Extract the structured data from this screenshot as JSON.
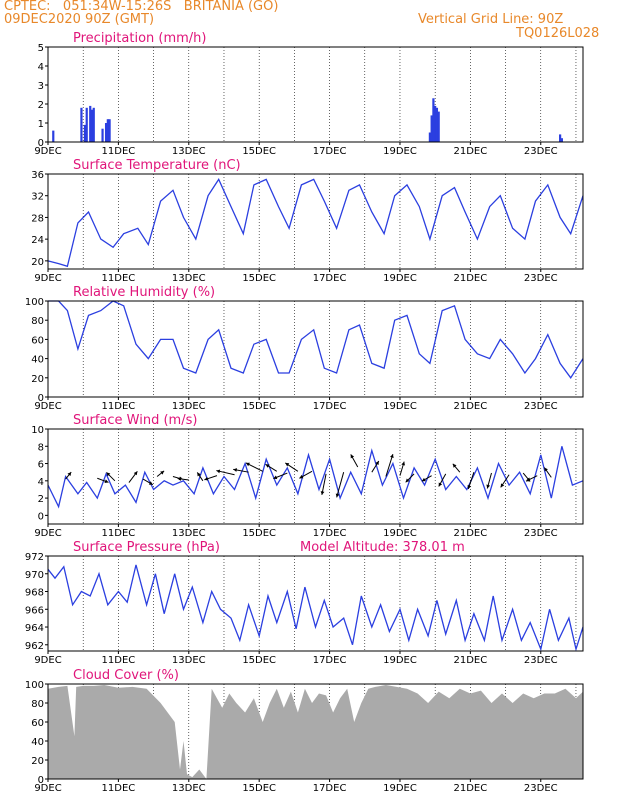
{
  "header": {
    "line1_left": "CPTEC:   051:34W-15:26S   BRITANIA (GO)",
    "line2_left": "09DEC2020 90Z (GMT)",
    "line2_right": "Vertical Grid Line: 90Z",
    "line3_right": "TQ0126L028"
  },
  "colors": {
    "series": "#2b3fe0",
    "cloud": "#aaaaaa",
    "title": "#e0157a",
    "header": "#e8882a"
  },
  "chart_data": [
    {
      "type": "bar",
      "title": "Precipitation (mm/h)",
      "ylim": [
        0,
        5
      ],
      "yticks": [
        0,
        1,
        2,
        3,
        4,
        5
      ],
      "xticks": [
        "9DEC",
        "11DEC",
        "13DEC",
        "15DEC",
        "17DEC",
        "19DEC",
        "21DEC",
        "23DEC"
      ],
      "x": [
        0.15,
        0.95,
        1.05,
        1.1,
        1.2,
        1.25,
        1.3,
        1.55,
        1.65,
        1.7,
        1.75,
        10.85,
        10.9,
        10.95,
        11.0,
        11.05,
        11.1,
        14.55,
        14.6
      ],
      "values": [
        0.6,
        1.8,
        0.9,
        1.8,
        1.9,
        1.7,
        1.8,
        0.7,
        1.0,
        1.2,
        1.2,
        0.5,
        1.4,
        2.3,
        1.9,
        1.8,
        1.6,
        0.4,
        0.2
      ]
    },
    {
      "type": "line",
      "title": "Surface Temperature (nC)",
      "ylim": [
        18.5,
        36
      ],
      "yticks": [
        20,
        24,
        28,
        32,
        36
      ],
      "xticks": [
        "9DEC",
        "11DEC",
        "13DEC",
        "15DEC",
        "17DEC",
        "19DEC",
        "21DEC",
        "23DEC"
      ],
      "x": [
        0,
        0.3,
        0.55,
        0.85,
        1.15,
        1.5,
        1.85,
        2.15,
        2.55,
        2.85,
        3.2,
        3.55,
        3.85,
        4.2,
        4.55,
        4.85,
        5.2,
        5.55,
        5.85,
        6.2,
        6.55,
        6.85,
        7.2,
        7.55,
        7.85,
        8.2,
        8.55,
        8.85,
        9.2,
        9.55,
        9.85,
        10.2,
        10.55,
        10.85,
        11.2,
        11.55,
        11.85,
        12.2,
        12.55,
        12.85,
        13.2,
        13.55,
        13.85,
        14.2,
        14.55,
        14.85,
        15.2
      ],
      "values": [
        20,
        19.5,
        19,
        27,
        29,
        24,
        22.5,
        25,
        26,
        23,
        31,
        33,
        28,
        24,
        32,
        35,
        30,
        25,
        34,
        35,
        30,
        26,
        34,
        35,
        31,
        26,
        33,
        34,
        29,
        25,
        32,
        34,
        30,
        24,
        32,
        33.5,
        29,
        24,
        30,
        32,
        26,
        24,
        31,
        34,
        28,
        25,
        32
      ]
    },
    {
      "type": "line",
      "title": "Relative Humidity (%)",
      "ylim": [
        0,
        100
      ],
      "yticks": [
        0,
        20,
        40,
        60,
        80,
        100
      ],
      "xticks": [
        "9DEC",
        "11DEC",
        "13DEC",
        "15DEC",
        "17DEC",
        "19DEC",
        "21DEC",
        "23DEC"
      ],
      "x": [
        0,
        0.3,
        0.55,
        0.85,
        1.15,
        1.5,
        1.85,
        2.15,
        2.5,
        2.85,
        3.2,
        3.55,
        3.85,
        4.2,
        4.55,
        4.85,
        5.2,
        5.55,
        5.85,
        6.2,
        6.55,
        6.85,
        7.2,
        7.55,
        7.85,
        8.2,
        8.55,
        8.85,
        9.2,
        9.55,
        9.85,
        10.2,
        10.55,
        10.85,
        11.2,
        11.55,
        11.85,
        12.2,
        12.55,
        12.85,
        13.2,
        13.55,
        13.85,
        14.2,
        14.55,
        14.85,
        15.2
      ],
      "values": [
        100,
        100,
        90,
        50,
        85,
        90,
        100,
        95,
        55,
        40,
        60,
        60,
        30,
        25,
        60,
        70,
        30,
        25,
        55,
        60,
        25,
        25,
        60,
        70,
        30,
        25,
        70,
        75,
        35,
        30,
        80,
        85,
        45,
        35,
        90,
        95,
        60,
        45,
        40,
        60,
        45,
        25,
        40,
        65,
        35,
        20,
        40
      ]
    },
    {
      "type": "line",
      "title": "Surface Wind (m/s)",
      "ylim": [
        -1,
        10
      ],
      "yticks": [
        0,
        2,
        4,
        6,
        8,
        10
      ],
      "xticks": [
        "9DEC",
        "11DEC",
        "13DEC",
        "15DEC",
        "17DEC",
        "19DEC",
        "21DEC",
        "23DEC"
      ],
      "x": [
        0,
        0.3,
        0.5,
        0.85,
        1.1,
        1.4,
        1.65,
        1.9,
        2.2,
        2.5,
        2.75,
        3.0,
        3.3,
        3.55,
        3.85,
        4.15,
        4.4,
        4.7,
        5.0,
        5.3,
        5.6,
        5.9,
        6.2,
        6.5,
        6.8,
        7.1,
        7.4,
        7.7,
        8.0,
        8.3,
        8.6,
        8.9,
        9.2,
        9.5,
        9.8,
        10.1,
        10.4,
        10.7,
        11.0,
        11.3,
        11.6,
        11.9,
        12.2,
        12.5,
        12.8,
        13.1,
        13.4,
        13.7,
        14.0,
        14.3,
        14.6,
        14.9,
        15.2
      ],
      "values": [
        3.5,
        1.0,
        4.5,
        2.5,
        3.8,
        2.0,
        4.8,
        2.5,
        3.5,
        1.5,
        5.0,
        3.0,
        4.0,
        3.5,
        4.0,
        2.5,
        5.5,
        2.5,
        4.5,
        3.0,
        6.0,
        2.0,
        6.5,
        3.5,
        5.5,
        2.5,
        7.0,
        3.0,
        6.5,
        2.0,
        5.0,
        2.5,
        7.5,
        3.5,
        6.0,
        2.0,
        5.5,
        3.5,
        6.5,
        3.0,
        4.5,
        3.0,
        5.5,
        2.0,
        6.0,
        3.5,
        5.0,
        2.5,
        7.0,
        2.0,
        8.0,
        3.5,
        4.0
      ],
      "arrows": [
        [
          0.5,
          4.2,
          0.4,
          0.5
        ],
        [
          1.4,
          4.3,
          0.8,
          -0.3
        ],
        [
          1.9,
          4.0,
          -0.6,
          0.6
        ],
        [
          2.3,
          3.8,
          0.6,
          0.8
        ],
        [
          2.7,
          4.2,
          0.7,
          -0.4
        ],
        [
          3.1,
          4.5,
          0.5,
          0.4
        ],
        [
          3.55,
          4.5,
          0.7,
          -0.2
        ],
        [
          4.0,
          4.1,
          -0.8,
          0.1
        ],
        [
          4.4,
          4.0,
          -0.4,
          0.6
        ],
        [
          4.8,
          4.6,
          -0.9,
          -0.3
        ],
        [
          5.3,
          4.7,
          -1.3,
          0.3
        ],
        [
          5.7,
          5.0,
          -1.1,
          0.2
        ],
        [
          6.1,
          5.1,
          -1.2,
          0.6
        ],
        [
          6.5,
          5.1,
          -0.8,
          0.5
        ],
        [
          6.8,
          4.9,
          -1.0,
          -0.4
        ],
        [
          7.1,
          5.1,
          -0.9,
          0.6
        ],
        [
          7.5,
          5.1,
          -0.9,
          -0.5
        ],
        [
          7.9,
          4.8,
          -0.3,
          -1.5
        ],
        [
          8.4,
          5.0,
          -0.5,
          -1.8
        ],
        [
          8.8,
          5.6,
          -0.5,
          0.9
        ],
        [
          9.2,
          5.0,
          0.5,
          0.8
        ],
        [
          9.6,
          4.5,
          0.5,
          1.6
        ],
        [
          10.0,
          4.6,
          0.3,
          1.0
        ],
        [
          10.4,
          4.8,
          -0.6,
          -0.6
        ],
        [
          10.9,
          4.6,
          -0.7,
          -0.4
        ],
        [
          11.3,
          4.8,
          -0.5,
          -0.9
        ],
        [
          11.7,
          5.0,
          -0.5,
          0.6
        ],
        [
          12.1,
          5.0,
          -0.4,
          -1.2
        ],
        [
          12.6,
          4.9,
          -0.3,
          -1.1
        ],
        [
          13.1,
          4.7,
          -0.6,
          -0.9
        ],
        [
          13.5,
          4.9,
          0.5,
          -0.6
        ],
        [
          13.9,
          4.6,
          -0.8,
          -0.4
        ],
        [
          14.3,
          4.4,
          -0.5,
          0.7
        ]
      ]
    },
    {
      "type": "line",
      "title": "Surface Pressure (hPa)",
      "annotation": "Model Altitude: 378.01 m",
      "ylim": [
        961.3,
        972
      ],
      "yticks": [
        962,
        964,
        966,
        968,
        970,
        972
      ],
      "xticks": [
        "9DEC",
        "11DEC",
        "13DEC",
        "15DEC",
        "17DEC",
        "19DEC",
        "21DEC",
        "23DEC"
      ],
      "x": [
        0,
        0.2,
        0.45,
        0.7,
        0.95,
        1.2,
        1.45,
        1.7,
        2.0,
        2.25,
        2.5,
        2.8,
        3.05,
        3.3,
        3.6,
        3.85,
        4.1,
        4.4,
        4.65,
        4.9,
        5.2,
        5.45,
        5.7,
        6.0,
        6.25,
        6.5,
        6.8,
        7.05,
        7.3,
        7.6,
        7.85,
        8.1,
        8.4,
        8.65,
        8.9,
        9.2,
        9.45,
        9.7,
        10.0,
        10.25,
        10.5,
        10.8,
        11.05,
        11.3,
        11.6,
        11.85,
        12.1,
        12.4,
        12.65,
        12.9,
        13.2,
        13.45,
        13.7,
        14.0,
        14.25,
        14.5,
        14.8,
        15.0,
        15.2
      ],
      "values": [
        970.5,
        969.5,
        970.8,
        966.5,
        968.0,
        967.5,
        970.0,
        966.5,
        968.0,
        966.8,
        971.0,
        966.5,
        970.0,
        965.5,
        970.0,
        966.0,
        968.5,
        964.5,
        968.0,
        966.0,
        965.0,
        962.5,
        966.5,
        963.0,
        967.5,
        964.5,
        968.0,
        963.8,
        968.5,
        964.0,
        967.0,
        964.0,
        965.0,
        962.0,
        967.5,
        964.0,
        966.5,
        963.5,
        966.0,
        962.5,
        966.0,
        963.0,
        967.0,
        963.2,
        967.0,
        962.5,
        965.5,
        962.5,
        967.5,
        962.5,
        966.0,
        962.5,
        964.5,
        961.5,
        966.0,
        962.5,
        965.0,
        961.5,
        964.0
      ]
    },
    {
      "type": "area",
      "title": "Cloud Cover (%)",
      "ylim": [
        0,
        100
      ],
      "yticks": [
        0,
        20,
        40,
        60,
        80,
        100
      ],
      "xticks": [
        "9DEC",
        "11DEC",
        "13DEC",
        "15DEC",
        "17DEC",
        "19DEC",
        "21DEC",
        "23DEC"
      ],
      "x": [
        0,
        0.3,
        0.55,
        0.75,
        0.8,
        1.0,
        1.3,
        1.6,
        2.0,
        2.4,
        2.8,
        3.2,
        3.6,
        3.75,
        3.85,
        3.95,
        4.1,
        4.3,
        4.5,
        4.65,
        4.8,
        4.95,
        5.15,
        5.35,
        5.6,
        5.85,
        6.1,
        6.3,
        6.5,
        6.7,
        6.9,
        7.1,
        7.3,
        7.5,
        7.7,
        7.9,
        8.1,
        8.3,
        8.5,
        8.7,
        8.9,
        9.1,
        9.3,
        9.6,
        9.9,
        10.2,
        10.5,
        10.8,
        11.1,
        11.4,
        11.7,
        12.0,
        12.3,
        12.6,
        12.9,
        13.2,
        13.5,
        13.8,
        14.1,
        14.4,
        14.7,
        15.0,
        15.2
      ],
      "values": [
        95,
        97,
        98,
        45,
        97,
        98,
        98,
        99,
        96,
        97,
        95,
        80,
        60,
        10,
        40,
        5,
        2,
        10,
        0,
        95,
        85,
        75,
        90,
        80,
        70,
        85,
        60,
        80,
        95,
        75,
        92,
        70,
        95,
        80,
        90,
        88,
        70,
        85,
        95,
        60,
        80,
        95,
        97,
        99,
        97,
        95,
        90,
        80,
        92,
        85,
        95,
        90,
        93,
        80,
        90,
        80,
        90,
        85,
        90,
        90,
        95,
        85,
        92
      ]
    }
  ]
}
